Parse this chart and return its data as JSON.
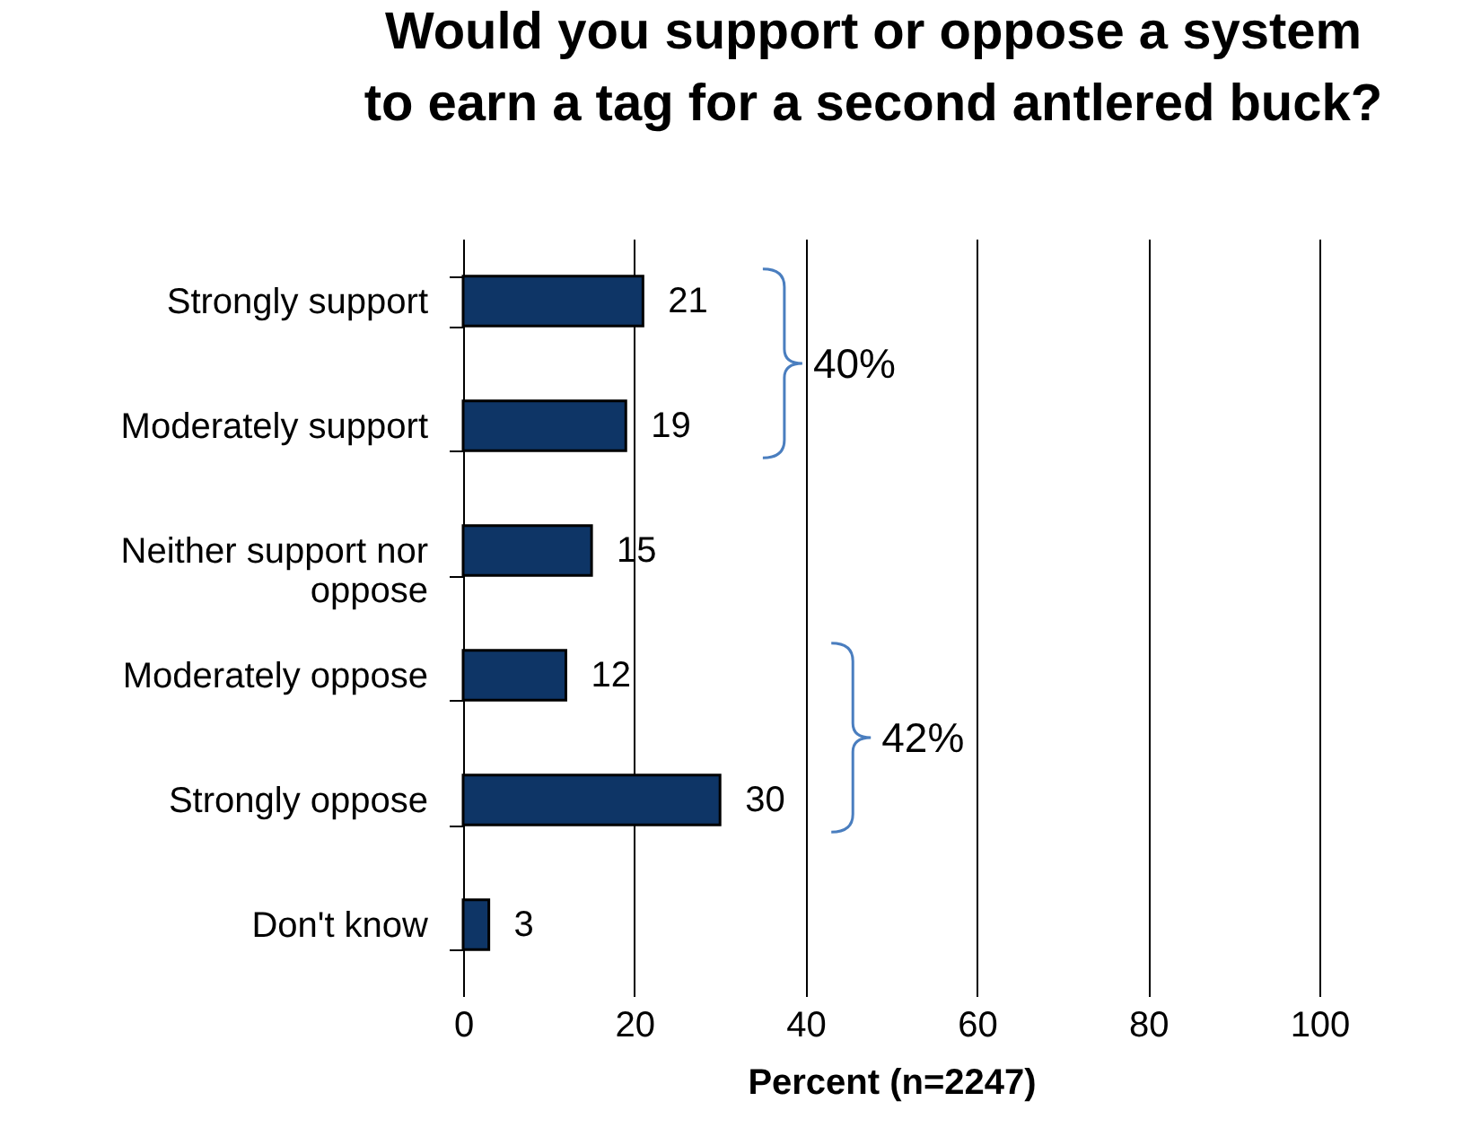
{
  "chart_data": {
    "type": "bar",
    "orientation": "horizontal",
    "title": "Would you support or oppose a system\nto earn a tag for a second antlered buck?",
    "categories": [
      "Strongly support",
      "Moderately support",
      "Neither support nor oppose",
      "Moderately oppose",
      "Strongly oppose",
      "Don't know"
    ],
    "values": [
      21,
      19,
      15,
      12,
      30,
      3
    ],
    "color": "#0e3566",
    "xlim": [
      0,
      100
    ],
    "xticks": [
      0,
      20,
      40,
      60,
      80,
      100
    ],
    "xlabel": "Percent (n=2247)",
    "grid": "x",
    "data_labels": true,
    "annotations": [
      "40%",
      "42%"
    ]
  }
}
